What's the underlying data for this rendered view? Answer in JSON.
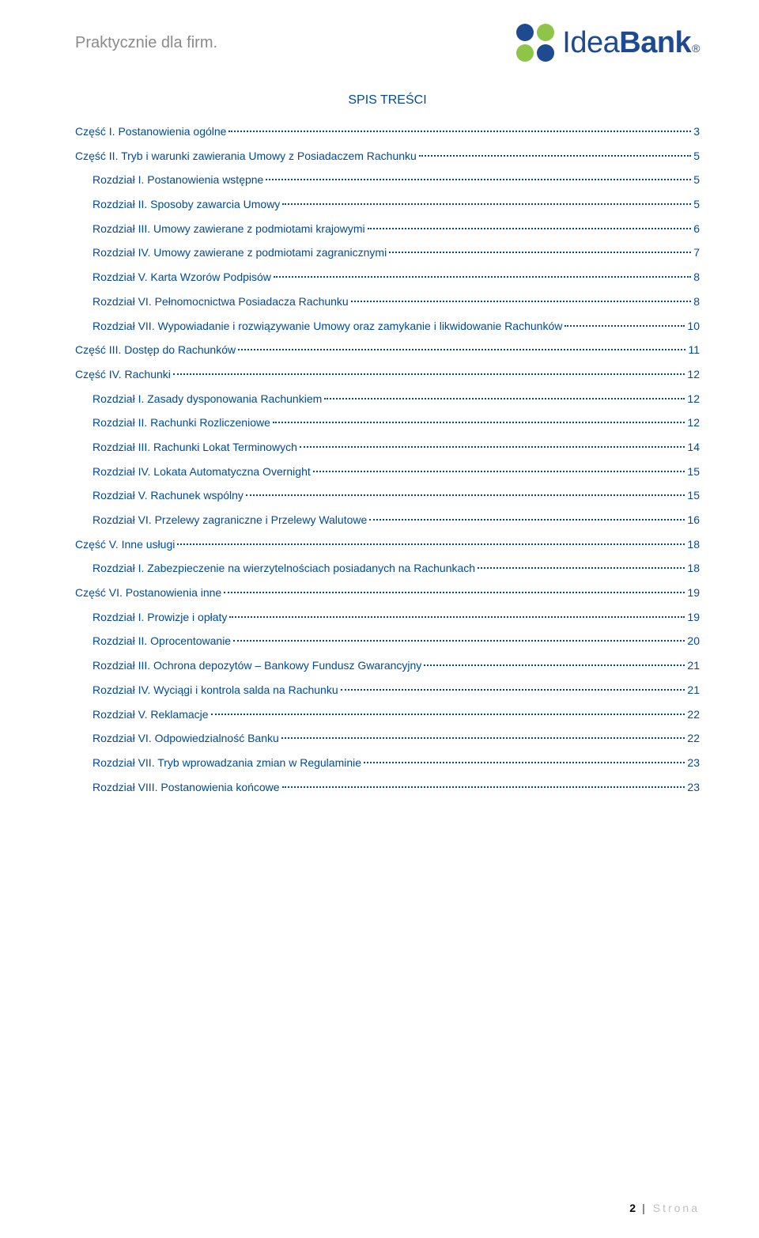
{
  "header": {
    "tagline": "Praktycznie dla firm.",
    "logo_text_1": "Idea",
    "logo_text_2": "Bank",
    "logo_reg": "®"
  },
  "toc": {
    "title": "SPIS TREŚCI",
    "entries": [
      {
        "level": 1,
        "label": "Część I.  Postanowienia ogólne",
        "page": "3"
      },
      {
        "level": 1,
        "label": "Część II.  Tryb i warunki zawierania Umowy z Posiadaczem Rachunku",
        "page": "5"
      },
      {
        "level": 2,
        "label": "Rozdział I.  Postanowienia wstępne",
        "page": "5"
      },
      {
        "level": 2,
        "label": "Rozdział II.  Sposoby zawarcia Umowy",
        "page": "5"
      },
      {
        "level": 2,
        "label": "Rozdział III.  Umowy zawierane z podmiotami krajowymi",
        "page": "6"
      },
      {
        "level": 2,
        "label": "Rozdział IV.  Umowy zawierane z podmiotami zagranicznymi",
        "page": "7"
      },
      {
        "level": 2,
        "label": "Rozdział V.  Karta Wzorów Podpisów",
        "page": "8"
      },
      {
        "level": 2,
        "label": "Rozdział VI.  Pełnomocnictwa Posiadacza Rachunku",
        "page": "8"
      },
      {
        "level": 2,
        "label": "Rozdział VII.  Wypowiadanie i rozwiązywanie Umowy oraz zamykanie i likwidowanie Rachunków",
        "page": "10"
      },
      {
        "level": 1,
        "label": "Część III.  Dostęp do Rachunków",
        "page": "11"
      },
      {
        "level": 1,
        "label": "Część IV.  Rachunki",
        "page": "12"
      },
      {
        "level": 2,
        "label": "Rozdział I.  Zasady dysponowania Rachunkiem",
        "page": "12"
      },
      {
        "level": 2,
        "label": "Rozdział II.  Rachunki Rozliczeniowe",
        "page": "12"
      },
      {
        "level": 2,
        "label": "Rozdział III.  Rachunki Lokat Terminowych",
        "page": "14"
      },
      {
        "level": 2,
        "label": "Rozdział IV.  Lokata Automatyczna Overnight",
        "page": "15"
      },
      {
        "level": 2,
        "label": "Rozdział V.  Rachunek wspólny",
        "page": "15"
      },
      {
        "level": 2,
        "label": "Rozdział VI.  Przelewy zagraniczne i Przelewy Walutowe",
        "page": "16"
      },
      {
        "level": 1,
        "label": "Część V.  Inne usługi",
        "page": "18"
      },
      {
        "level": 2,
        "label": "Rozdział I.  Zabezpieczenie na wierzytelnościach posiadanych na Rachunkach",
        "page": "18"
      },
      {
        "level": 1,
        "label": "Część VI.  Postanowienia inne",
        "page": "19"
      },
      {
        "level": 2,
        "label": "Rozdział I.  Prowizje i opłaty",
        "page": "19"
      },
      {
        "level": 2,
        "label": "Rozdział II. Oprocentowanie",
        "page": "20"
      },
      {
        "level": 2,
        "label": "Rozdział III.  Ochrona depozytów – Bankowy Fundusz Gwarancyjny",
        "page": "21"
      },
      {
        "level": 2,
        "label": "Rozdział IV.  Wyciągi i kontrola salda na Rachunku",
        "page": "21"
      },
      {
        "level": 2,
        "label": "Rozdział V.  Reklamacje",
        "page": "22"
      },
      {
        "level": 2,
        "label": "Rozdział VI.  Odpowiedzialność Banku",
        "page": "22"
      },
      {
        "level": 2,
        "label": "Rozdział VII.  Tryb wprowadzania zmian w Regulaminie",
        "page": "23"
      },
      {
        "level": 2,
        "label": "Rozdział VIII.  Postanowienia końcowe",
        "page": "23"
      }
    ]
  },
  "footer": {
    "page_number": "2",
    "separator": "|",
    "label": "Strona"
  },
  "colors": {
    "link_color": "#004a99",
    "logo_blue": "#1e4a8f",
    "logo_green": "#8ec549",
    "tagline_gray": "#8a8a8a",
    "footer_gray": "#bfbfbf"
  }
}
